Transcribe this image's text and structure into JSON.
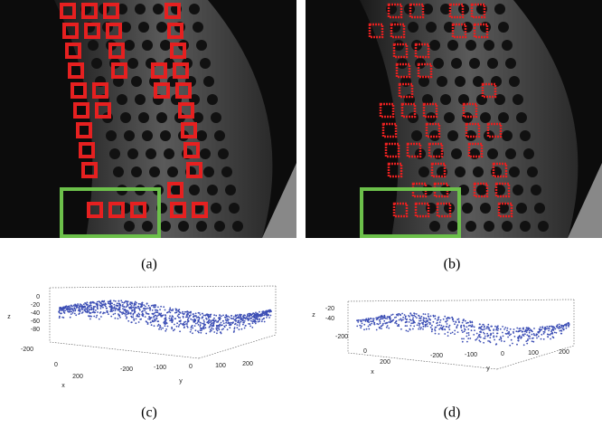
{
  "panels": [
    {
      "caption": "(a)"
    },
    {
      "caption": "(b)"
    }
  ],
  "plots": [
    {
      "caption": "(c)",
      "z_label": "z",
      "x_label": "x",
      "y_label": "y",
      "z_ticks": [
        0,
        -20,
        -40,
        -60,
        -80
      ],
      "x_ticks": [
        -200,
        0,
        200
      ],
      "y_ticks": [
        -200,
        -100,
        0,
        100,
        200
      ]
    },
    {
      "caption": "(d)",
      "z_label": "z",
      "x_label": "x",
      "y_label": "y",
      "z_ticks": [
        -20,
        -40
      ],
      "x_ticks": [
        -200,
        0,
        200
      ],
      "y_ticks": [
        -200,
        -100,
        0,
        100,
        200
      ]
    }
  ]
}
